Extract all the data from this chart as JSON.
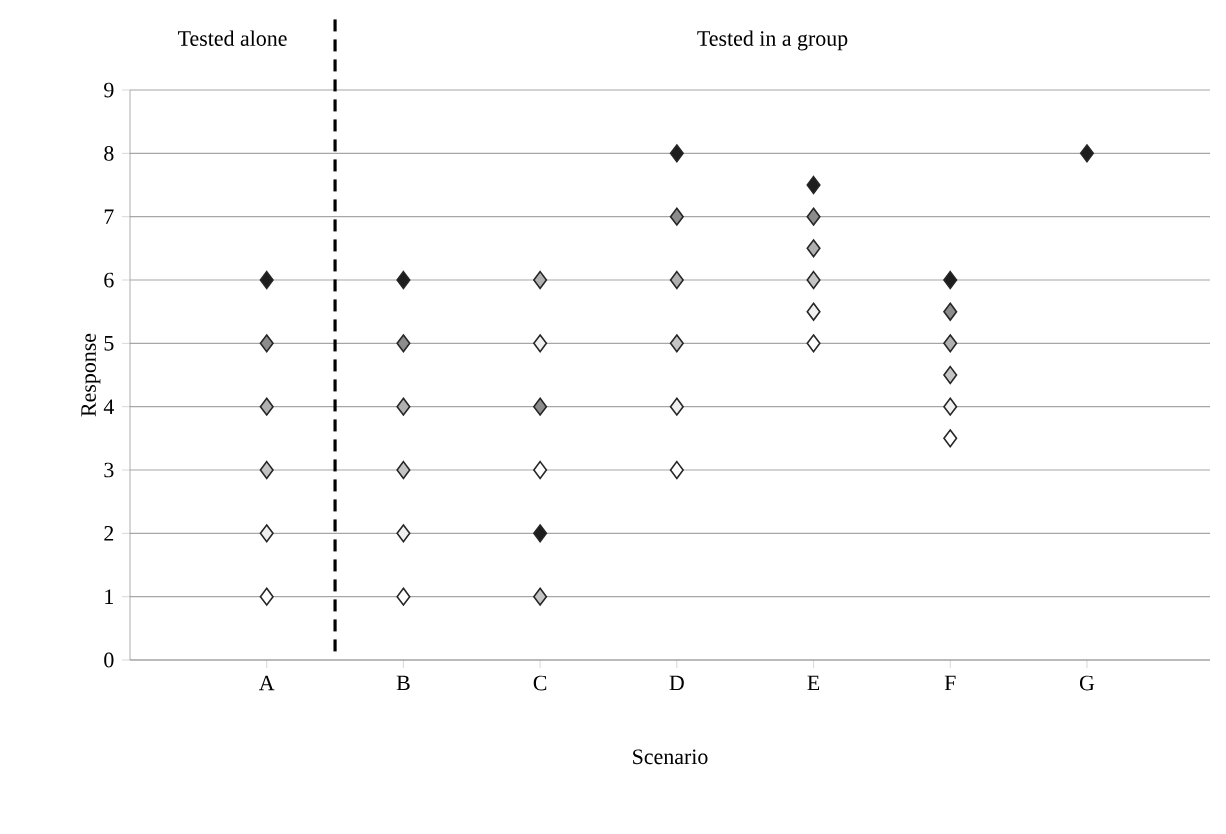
{
  "chart_data": {
    "type": "scatter",
    "xlabel": "Scenario",
    "ylabel": "Response",
    "categories": [
      "A",
      "B",
      "C",
      "D",
      "E",
      "F",
      "G"
    ],
    "ylim": [
      0,
      9
    ],
    "yticks": [
      0,
      1,
      2,
      3,
      4,
      5,
      6,
      7,
      8,
      9
    ],
    "grid": "y",
    "marker": "diamond",
    "series": [
      {
        "color": "#ffffff",
        "values": [
          1,
          1,
          3,
          3,
          5,
          3.5,
          null
        ]
      },
      {
        "color": "#f0f0f0",
        "values": [
          2,
          2,
          5,
          4,
          5.5,
          4,
          null
        ]
      },
      {
        "color": "#c4c4c4",
        "values": [
          3,
          3,
          1,
          5,
          6,
          4.5,
          null
        ]
      },
      {
        "color": "#b0b0b0",
        "values": [
          4,
          4,
          6,
          6,
          6.5,
          5,
          null
        ]
      },
      {
        "color": "#8c8c8c",
        "values": [
          5,
          5,
          4,
          7,
          7,
          5.5,
          null
        ]
      },
      {
        "color": "#1e1e1e",
        "values": [
          6,
          6,
          2,
          8,
          7.5,
          6,
          8
        ]
      }
    ],
    "annotations": [
      "Tested alone",
      "Tested in a group"
    ]
  }
}
